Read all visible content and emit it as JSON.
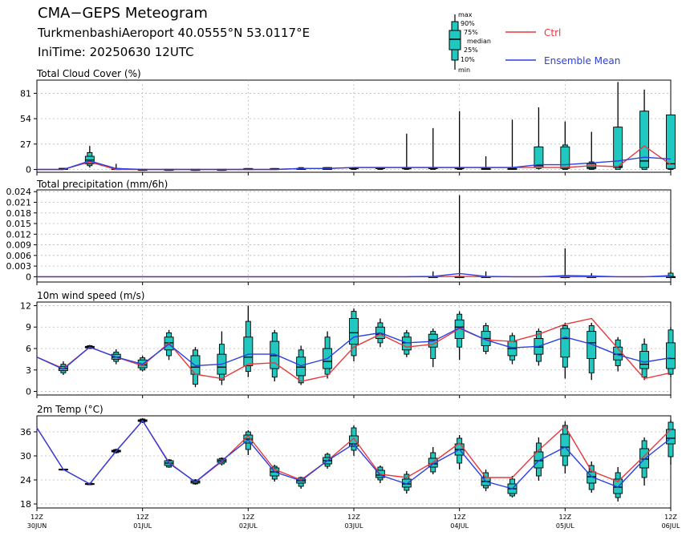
{
  "header": {
    "title": "CMA−GEPS Meteogram",
    "station": "TurkmenbashiAeroport 40.0555°N 53.0117°E",
    "initime": "IniTime: 20250630 12UTC"
  },
  "legend": {
    "box_labels": [
      "max",
      "90%",
      "75%",
      "median",
      "25%",
      "10%",
      "min"
    ],
    "ctrl_label": "Ctrl",
    "mean_label": "Ensemble Mean",
    "ctrl_color": "#e8383d",
    "mean_color": "#2c3fe0",
    "box_color": "#20c8c0"
  },
  "x_axis": {
    "tick_labels": [
      [
        "12Z",
        "30JUN"
      ],
      [
        "12Z",
        "01JUL"
      ],
      [
        "12Z",
        "02JUL"
      ],
      [
        "12Z",
        "03JUL"
      ],
      [
        "12Z",
        "04JUL"
      ],
      [
        "12Z",
        "05JUL"
      ],
      [
        "12Z",
        "06JUL"
      ]
    ]
  },
  "chart_data": [
    {
      "type": "box",
      "title": "Total Cloud Cover (%)",
      "ylim": [
        -3,
        95
      ],
      "yticks": [
        0,
        27,
        54,
        81
      ],
      "ytick_labels": [
        "0",
        "27",
        "54",
        "81"
      ],
      "x_hours": [
        0,
        6,
        12,
        18,
        24,
        30,
        36,
        42,
        48,
        54,
        60,
        66,
        72,
        78,
        84,
        90,
        96,
        102,
        108,
        114,
        120,
        126,
        132,
        138,
        144
      ],
      "ctrl": [
        0,
        0,
        8,
        0,
        0,
        0,
        0,
        0,
        0,
        0,
        1,
        1,
        2,
        2,
        2,
        2,
        2,
        2,
        2,
        2,
        2,
        4,
        3,
        25,
        5
      ],
      "ensemble_mean": [
        0,
        0,
        9,
        1,
        0,
        0,
        0,
        0,
        0,
        0,
        1,
        1,
        2,
        2,
        2,
        2,
        2,
        2,
        2,
        5,
        5,
        7,
        9,
        13,
        11
      ],
      "boxes": [
        null,
        [
          0,
          0,
          0,
          1,
          1,
          1,
          1
        ],
        [
          2,
          4,
          6,
          10,
          14,
          18,
          25
        ],
        [
          0,
          0,
          0,
          0,
          1,
          1,
          6
        ],
        [
          0,
          0,
          0,
          0,
          0,
          0,
          0
        ],
        [
          0,
          0,
          0,
          0,
          0,
          0,
          0
        ],
        [
          0,
          0,
          0,
          0,
          0,
          0,
          0
        ],
        [
          0,
          0,
          0,
          0,
          0,
          0,
          0
        ],
        [
          0,
          0,
          0,
          0,
          1,
          1,
          1
        ],
        [
          0,
          0,
          0,
          0,
          1,
          1,
          1
        ],
        [
          0,
          0,
          0,
          1,
          1,
          2,
          2
        ],
        [
          0,
          0,
          0,
          1,
          2,
          2,
          2
        ],
        [
          0,
          0,
          1,
          1,
          2,
          2,
          2
        ],
        [
          0,
          0,
          1,
          1,
          2,
          2,
          2
        ],
        [
          0,
          0,
          1,
          1,
          2,
          2,
          38
        ],
        [
          0,
          0,
          1,
          1,
          2,
          2,
          44
        ],
        [
          0,
          0,
          1,
          1,
          2,
          2,
          62
        ],
        [
          0,
          0,
          1,
          1,
          1,
          1,
          14
        ],
        [
          0,
          0,
          0,
          1,
          1,
          2,
          53
        ],
        [
          0,
          1,
          2,
          4,
          24,
          24,
          66
        ],
        [
          0,
          0,
          1,
          2,
          24,
          26,
          51
        ],
        [
          0,
          0,
          1,
          2,
          6,
          8,
          40
        ],
        [
          0,
          0,
          2,
          3,
          45,
          45,
          93
        ],
        [
          0,
          0,
          2,
          9,
          62,
          62,
          85
        ],
        [
          0,
          0,
          1,
          6,
          58,
          58,
          58
        ]
      ]
    },
    {
      "type": "box",
      "title": "Total precipitation (mm/6h)",
      "ylim": [
        -0.0015,
        0.0245
      ],
      "yticks": [
        0,
        0.003,
        0.006,
        0.009,
        0.012,
        0.015,
        0.018,
        0.021,
        0.024
      ],
      "ytick_labels": [
        "0",
        "0.003",
        "0.006",
        "0.009",
        "0.012",
        "0.015",
        "0.018",
        "0.021",
        "0.024"
      ],
      "x_hours": [
        0,
        6,
        12,
        18,
        24,
        30,
        36,
        42,
        48,
        54,
        60,
        66,
        72,
        78,
        84,
        90,
        96,
        102,
        108,
        114,
        120,
        126,
        132,
        138,
        144
      ],
      "ctrl": [
        0,
        0,
        0,
        0,
        0,
        0,
        0,
        0,
        0,
        0,
        0,
        0,
        0,
        0,
        0,
        0,
        0.0001,
        0,
        0,
        0,
        0,
        0,
        0,
        0,
        0.0001
      ],
      "ensemble_mean": [
        0,
        0,
        0,
        0,
        0,
        0,
        0,
        0,
        0,
        0,
        0,
        0,
        0,
        0,
        0,
        0.0001,
        0.0009,
        0.0001,
        0,
        0,
        0.0003,
        0.0002,
        0,
        0,
        0.0003
      ],
      "boxes": [
        null,
        null,
        null,
        null,
        null,
        null,
        null,
        null,
        null,
        null,
        null,
        null,
        null,
        null,
        null,
        [
          0,
          0,
          0,
          0,
          0,
          0,
          0.0015
        ],
        [
          0,
          0,
          0,
          0,
          0,
          0,
          0.023
        ],
        [
          0,
          0,
          0,
          0,
          0,
          0,
          0.0015
        ],
        null,
        null,
        [
          0,
          0,
          0,
          0,
          0,
          0,
          0.008
        ],
        [
          0,
          0,
          0,
          0,
          0,
          0,
          0.001
        ],
        null,
        null,
        [
          0,
          0,
          0,
          0,
          0,
          0.001,
          0.0015
        ]
      ]
    },
    {
      "type": "box",
      "title": "10m wind speed (m/s)",
      "ylim": [
        -0.5,
        12.5
      ],
      "yticks": [
        0,
        3,
        6,
        9,
        12
      ],
      "ytick_labels": [
        "0",
        "3",
        "6",
        "9",
        "12"
      ],
      "x_hours": [
        0,
        6,
        12,
        18,
        24,
        30,
        36,
        42,
        48,
        54,
        60,
        66,
        72,
        78,
        84,
        90,
        96,
        102,
        108,
        114,
        120,
        126,
        132,
        138,
        144
      ],
      "ctrl": [
        4.8,
        3.2,
        6.2,
        4.8,
        3.6,
        6.8,
        2.4,
        1.8,
        3.8,
        4.0,
        1.4,
        2.2,
        6.2,
        8.0,
        6.2,
        6.6,
        8.8,
        7.2,
        7.0,
        8.0,
        9.4,
        10.2,
        6.0,
        1.8,
        2.6
      ],
      "ensemble_mean": [
        4.8,
        3.1,
        6.2,
        4.8,
        3.8,
        6.6,
        3.6,
        3.8,
        5.2,
        5.2,
        3.6,
        4.6,
        7.6,
        8.2,
        6.8,
        7.0,
        8.9,
        7.2,
        6.1,
        6.3,
        7.6,
        6.6,
        5.1,
        4.1,
        4.7
      ],
      "boxes": [
        null,
        [
          2.3,
          2.6,
          2.9,
          3.2,
          3.5,
          3.8,
          4.2
        ],
        [
          6.0,
          6.0,
          6.1,
          6.2,
          6.3,
          6.4,
          6.5
        ],
        [
          3.8,
          4.2,
          4.5,
          4.8,
          5.2,
          5.5,
          5.9
        ],
        [
          2.8,
          3.0,
          3.3,
          3.7,
          4.4,
          4.7,
          5.0
        ],
        [
          4.4,
          5.0,
          5.8,
          6.8,
          7.6,
          8.2,
          8.6
        ],
        [
          0.6,
          1.0,
          2.4,
          3.4,
          5.0,
          5.8,
          6.2
        ],
        [
          0.9,
          1.6,
          2.4,
          3.4,
          5.2,
          6.6,
          8.4
        ],
        [
          2.0,
          2.8,
          3.6,
          4.8,
          7.6,
          9.8,
          12.0
        ],
        [
          1.4,
          2.0,
          3.2,
          5.0,
          7.0,
          8.2,
          8.6
        ],
        [
          0.9,
          1.2,
          2.2,
          3.4,
          4.8,
          5.8,
          6.4
        ],
        [
          1.8,
          2.4,
          3.2,
          4.2,
          6.0,
          7.6,
          8.4
        ],
        [
          4.2,
          5.0,
          6.6,
          8.2,
          10.2,
          11.2,
          11.6
        ],
        [
          6.2,
          6.8,
          7.4,
          8.0,
          9.0,
          9.6,
          10.2
        ],
        [
          4.8,
          5.2,
          5.8,
          6.8,
          7.6,
          8.2,
          8.6
        ],
        [
          3.4,
          4.6,
          6.2,
          7.2,
          8.0,
          8.4,
          8.8
        ],
        [
          4.4,
          6.2,
          7.4,
          9.0,
          10.0,
          10.8,
          11.2
        ],
        [
          5.2,
          5.6,
          6.4,
          7.4,
          8.4,
          9.2,
          9.6
        ],
        [
          3.8,
          4.4,
          5.0,
          6.0,
          7.0,
          7.8,
          8.2
        ],
        [
          3.6,
          4.2,
          5.2,
          6.2,
          7.4,
          8.4,
          8.8
        ],
        [
          1.8,
          3.4,
          4.8,
          7.4,
          8.8,
          9.2,
          9.6
        ],
        [
          1.6,
          2.6,
          4.6,
          6.8,
          8.4,
          9.2,
          9.6
        ],
        [
          2.8,
          3.6,
          4.4,
          5.2,
          6.2,
          7.2,
          7.6
        ],
        [
          1.6,
          2.0,
          3.2,
          3.8,
          5.6,
          6.6,
          7.4
        ],
        [
          2.0,
          2.4,
          3.2,
          4.6,
          6.8,
          8.6,
          9.0
        ]
      ]
    },
    {
      "type": "box",
      "title": "2m Temp (°C)",
      "ylim": [
        17,
        40
      ],
      "yticks": [
        18,
        24,
        30,
        36
      ],
      "ytick_labels": [
        "18",
        "24",
        "30",
        "36"
      ],
      "x_hours": [
        0,
        6,
        12,
        18,
        24,
        30,
        36,
        42,
        48,
        54,
        60,
        66,
        72,
        78,
        84,
        90,
        96,
        102,
        108,
        114,
        120,
        126,
        132,
        138,
        144
      ],
      "ctrl": [
        37.0,
        26.6,
        23.0,
        31.2,
        38.8,
        28.4,
        23.4,
        28.6,
        35.0,
        26.6,
        24.0,
        28.8,
        34.4,
        25.4,
        24.6,
        28.4,
        33.2,
        24.6,
        24.6,
        31.4,
        37.4,
        26.2,
        23.6,
        30.0,
        36.6
      ],
      "ensemble_mean": [
        37.0,
        26.6,
        23.0,
        31.2,
        38.8,
        28.2,
        23.5,
        28.8,
        34.0,
        26.0,
        23.8,
        28.8,
        33.0,
        25.2,
        23.0,
        28.0,
        31.6,
        23.6,
        21.8,
        28.8,
        32.2,
        24.8,
        22.2,
        29.2,
        34.4
      ],
      "boxes": [
        null,
        [
          26.4,
          26.5,
          26.5,
          26.6,
          26.7,
          26.7,
          26.8
        ],
        [
          22.7,
          22.8,
          22.9,
          23.0,
          23.1,
          23.2,
          23.3
        ],
        [
          30.6,
          30.8,
          31.0,
          31.2,
          31.4,
          31.6,
          31.8
        ],
        [
          38.2,
          38.4,
          38.6,
          38.8,
          39.0,
          39.2,
          39.4
        ],
        [
          27.0,
          27.2,
          27.6,
          28.2,
          28.8,
          29.0,
          29.2
        ],
        [
          22.8,
          23.0,
          23.2,
          23.5,
          23.8,
          24.0,
          24.2
        ],
        [
          27.6,
          28.0,
          28.4,
          28.8,
          29.2,
          29.4,
          29.6
        ],
        [
          30.2,
          31.6,
          33.2,
          34.2,
          35.2,
          36.0,
          36.4
        ],
        [
          23.6,
          24.2,
          25.0,
          26.0,
          27.0,
          27.4,
          27.8
        ],
        [
          21.8,
          22.4,
          23.2,
          23.8,
          24.2,
          24.6,
          24.8
        ],
        [
          26.8,
          27.4,
          28.0,
          28.8,
          29.6,
          30.4,
          30.8
        ],
        [
          30.0,
          31.4,
          32.4,
          33.0,
          35.0,
          37.0,
          37.6
        ],
        [
          23.2,
          24.0,
          24.6,
          25.2,
          26.4,
          27.2,
          27.6
        ],
        [
          20.6,
          21.4,
          22.2,
          23.0,
          24.2,
          25.4,
          26.2
        ],
        [
          25.4,
          26.0,
          27.2,
          28.0,
          29.4,
          30.8,
          32.2
        ],
        [
          26.6,
          28.2,
          30.2,
          31.6,
          33.0,
          34.4,
          35.2
        ],
        [
          21.2,
          22.0,
          22.6,
          23.6,
          24.6,
          25.8,
          26.6
        ],
        [
          19.6,
          20.0,
          20.6,
          21.8,
          23.0,
          24.2,
          25.0
        ],
        [
          23.8,
          25.0,
          27.0,
          28.8,
          31.0,
          33.2,
          34.6
        ],
        [
          25.6,
          27.6,
          30.0,
          32.2,
          35.4,
          37.6,
          38.6
        ],
        [
          20.8,
          21.6,
          23.2,
          24.8,
          26.0,
          27.6,
          28.6
        ],
        [
          18.6,
          19.6,
          20.6,
          22.2,
          24.2,
          25.8,
          27.2
        ],
        [
          22.6,
          24.6,
          27.0,
          29.2,
          31.8,
          33.8,
          34.6
        ],
        [
          27.8,
          29.8,
          33.0,
          34.4,
          36.6,
          38.4,
          39.0
        ]
      ]
    }
  ]
}
